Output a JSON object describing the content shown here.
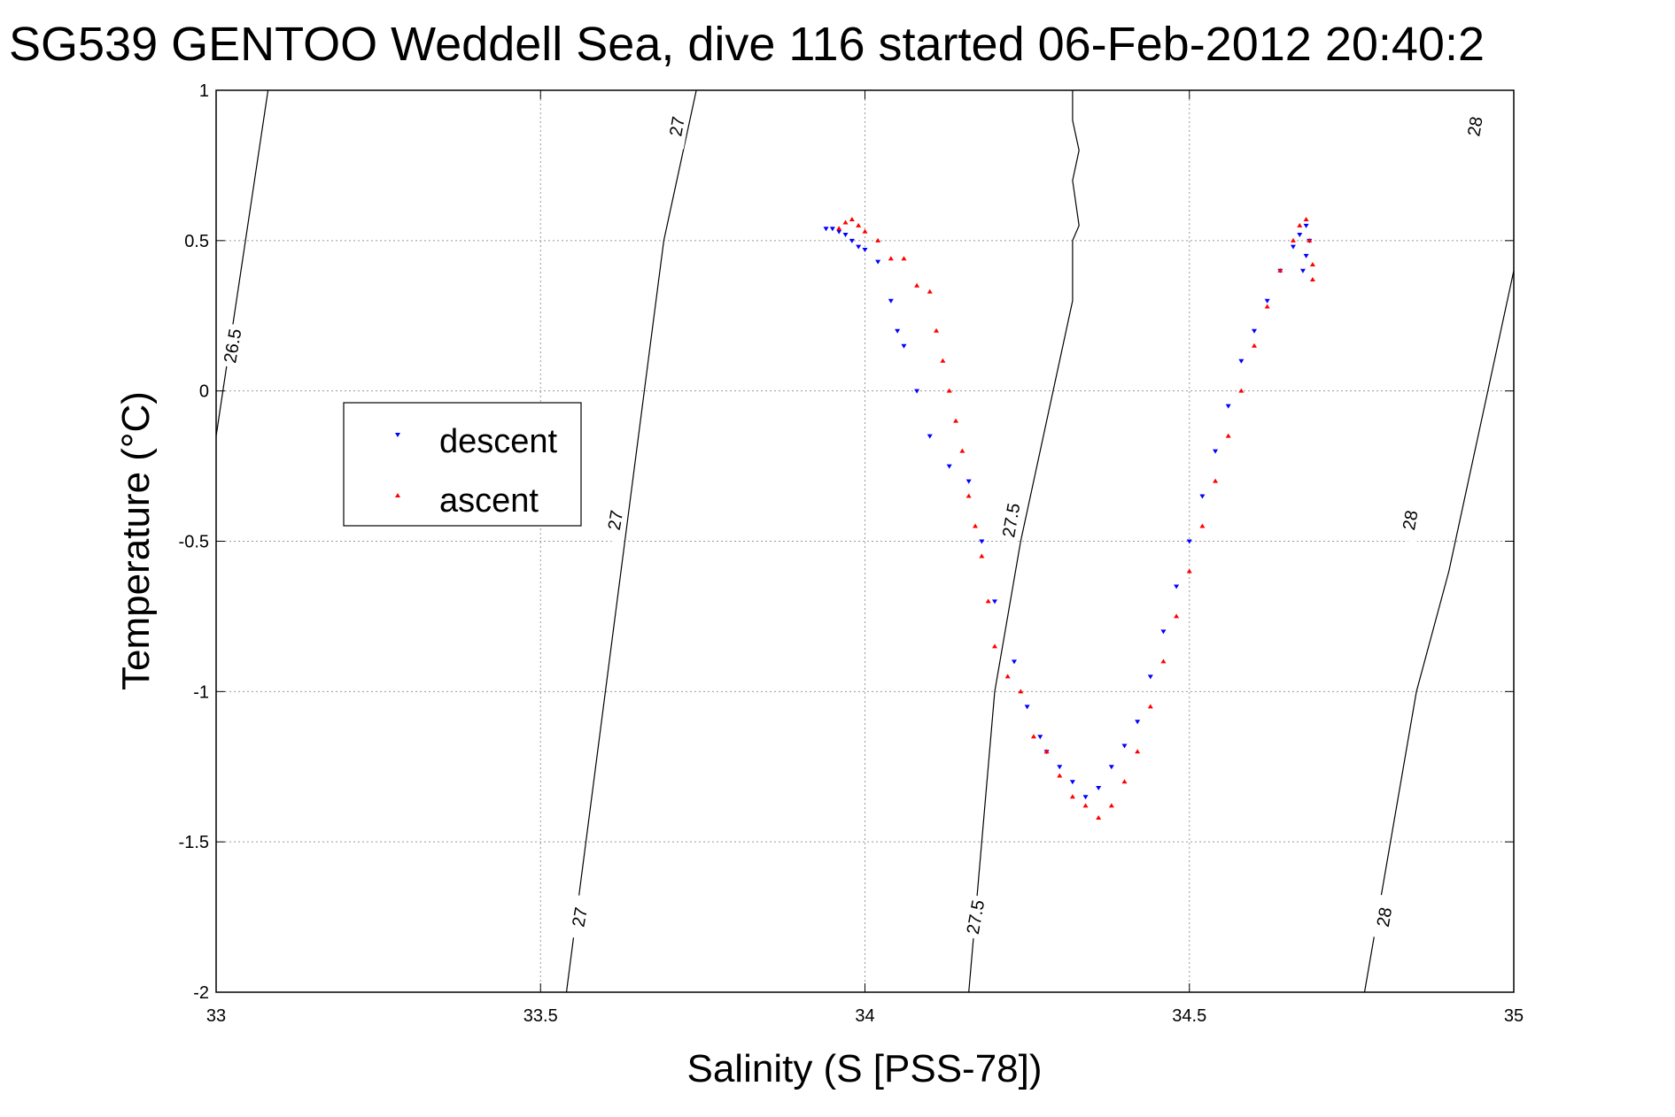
{
  "chart_data": {
    "type": "scatter",
    "title": "SG539 GENTOO Weddell Sea, dive 116 started 06-Feb-2012 20:40:2",
    "xlabel": "Salinity (S [PSS-78])",
    "ylabel": "Temperature (°C)",
    "xlim": [
      33,
      35
    ],
    "ylim": [
      -2,
      1
    ],
    "x_ticks": [
      33,
      33.5,
      34,
      34.5,
      35
    ],
    "x_tick_labels": [
      "33",
      "33.5",
      "34",
      "34.5",
      "35"
    ],
    "y_ticks": [
      1,
      0.5,
      0,
      -0.5,
      -1,
      -1.5,
      -2
    ],
    "y_tick_labels": [
      "1",
      "0.5",
      "0",
      "-0.5",
      "-1",
      "-1.5",
      "-2"
    ],
    "grid": true,
    "legend_position": "middle-left",
    "colors": {
      "descent": "#0000ff",
      "ascent": "#ff0000",
      "contour": "#000000"
    },
    "contours": [
      {
        "label": "26.5",
        "points": [
          [
            33.0,
            -0.15
          ],
          [
            33.08,
            1.0
          ]
        ],
        "label_positions": [
          [
            33.025,
            0.15
          ]
        ]
      },
      {
        "label": "27",
        "points": [
          [
            33.54,
            -2.0
          ],
          [
            33.66,
            0.0
          ],
          [
            33.69,
            0.5
          ],
          [
            33.74,
            1.0
          ]
        ],
        "label_positions": [
          [
            33.56,
            -1.75
          ],
          [
            33.615,
            -0.43
          ],
          [
            33.71,
            0.88
          ]
        ]
      },
      {
        "label": "27.5",
        "points": [
          [
            34.16,
            -2.0
          ],
          [
            34.2,
            -1.0
          ],
          [
            34.24,
            -0.5
          ],
          [
            34.32,
            0.3
          ],
          [
            34.32,
            0.5
          ],
          [
            34.33,
            0.55
          ],
          [
            34.32,
            0.7
          ],
          [
            34.33,
            0.8
          ],
          [
            34.32,
            0.9
          ],
          [
            34.32,
            1.0
          ]
        ],
        "label_positions": [
          [
            34.17,
            -1.75
          ],
          [
            34.225,
            -0.43
          ]
        ]
      },
      {
        "label": "28",
        "points": [
          [
            34.77,
            -2.0
          ],
          [
            34.85,
            -1.0
          ],
          [
            34.9,
            -0.6
          ],
          [
            34.96,
            0.0
          ],
          [
            35.01,
            0.5
          ],
          [
            35.05,
            1.0
          ]
        ],
        "label_positions": [
          [
            34.8,
            -1.75
          ],
          [
            34.84,
            -0.43
          ],
          [
            34.94,
            0.88
          ]
        ]
      }
    ],
    "series": [
      {
        "name": "descent",
        "marker": "triangle-down",
        "x": [
          33.94,
          33.95,
          33.96,
          33.97,
          33.98,
          33.99,
          34.0,
          34.02,
          34.04,
          34.05,
          34.06,
          34.08,
          34.1,
          34.13,
          34.16,
          34.18,
          34.2,
          34.23,
          34.25,
          34.27,
          34.28,
          34.3,
          34.32,
          34.34,
          34.36,
          34.38,
          34.4,
          34.42,
          34.44,
          34.46,
          34.48,
          34.5,
          34.52,
          34.54,
          34.56,
          34.58,
          34.6,
          34.62,
          34.64,
          34.66,
          34.67,
          34.68,
          34.685,
          34.68,
          34.675
        ],
        "y": [
          0.54,
          0.54,
          0.53,
          0.52,
          0.5,
          0.48,
          0.47,
          0.43,
          0.3,
          0.2,
          0.15,
          0.0,
          -0.15,
          -0.25,
          -0.3,
          -0.5,
          -0.7,
          -0.9,
          -1.05,
          -1.15,
          -1.2,
          -1.25,
          -1.3,
          -1.35,
          -1.32,
          -1.25,
          -1.18,
          -1.1,
          -0.95,
          -0.8,
          -0.65,
          -0.5,
          -0.35,
          -0.2,
          -0.05,
          0.1,
          0.2,
          0.3,
          0.4,
          0.48,
          0.52,
          0.55,
          0.5,
          0.45,
          0.4
        ]
      },
      {
        "name": "ascent",
        "marker": "triangle-up",
        "x": [
          33.96,
          33.97,
          33.98,
          33.99,
          34.0,
          34.02,
          34.04,
          34.06,
          34.08,
          34.1,
          34.11,
          34.12,
          34.13,
          34.14,
          34.15,
          34.16,
          34.17,
          34.18,
          34.19,
          34.2,
          34.22,
          34.24,
          34.26,
          34.28,
          34.3,
          34.32,
          34.34,
          34.36,
          34.38,
          34.4,
          34.42,
          34.44,
          34.46,
          34.48,
          34.5,
          34.52,
          34.54,
          34.56,
          34.58,
          34.6,
          34.62,
          34.64,
          34.66,
          34.67,
          34.68,
          34.685,
          34.69,
          34.69
        ],
        "y": [
          0.54,
          0.56,
          0.57,
          0.55,
          0.53,
          0.5,
          0.44,
          0.44,
          0.35,
          0.33,
          0.2,
          0.1,
          0.0,
          -0.1,
          -0.2,
          -0.35,
          -0.45,
          -0.55,
          -0.7,
          -0.85,
          -0.95,
          -1.0,
          -1.15,
          -1.2,
          -1.28,
          -1.35,
          -1.38,
          -1.42,
          -1.38,
          -1.3,
          -1.2,
          -1.05,
          -0.9,
          -0.75,
          -0.6,
          -0.45,
          -0.3,
          -0.15,
          0.0,
          0.15,
          0.28,
          0.4,
          0.5,
          0.55,
          0.57,
          0.5,
          0.42,
          0.37
        ]
      }
    ]
  }
}
